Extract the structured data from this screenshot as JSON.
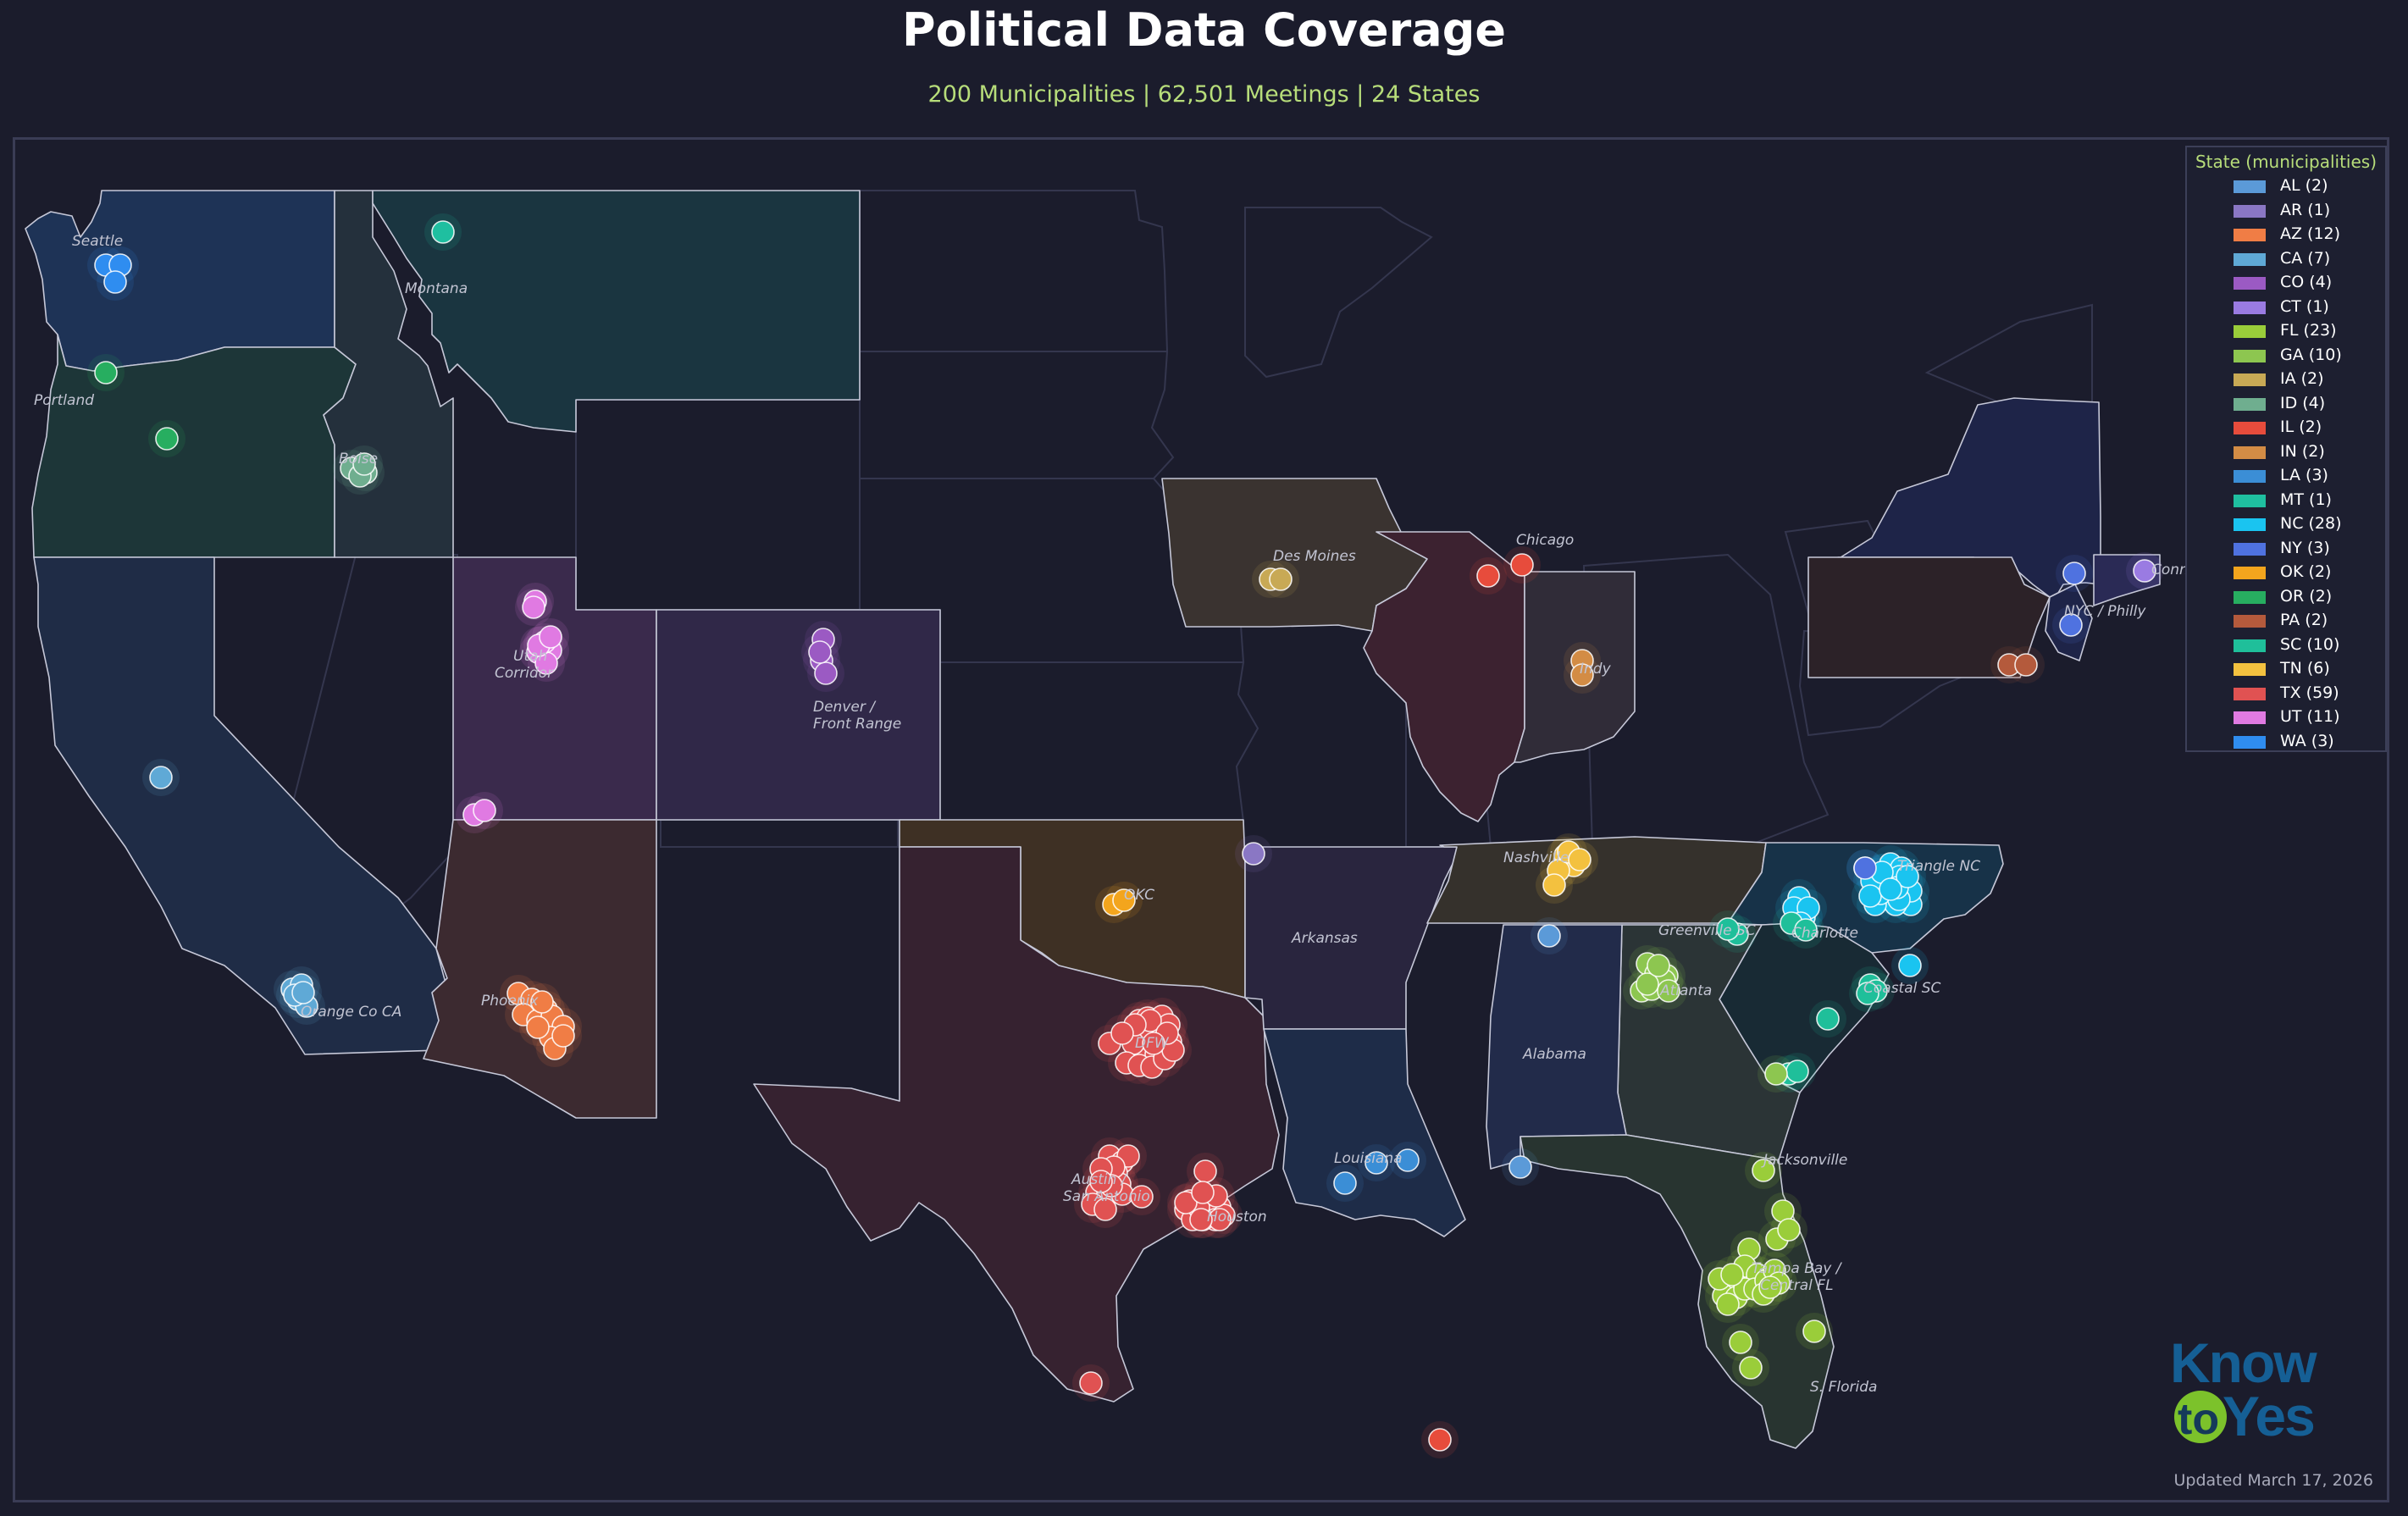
{
  "title": "Political Data Coverage",
  "subtitle": "200 Municipalities | 62,501 Meetings | 24 States",
  "legend": {
    "title": "State (municipalities)",
    "items": [
      {
        "label": "AL (2)",
        "color": "#5b9ad8"
      },
      {
        "label": "AR (1)",
        "color": "#8a77c4"
      },
      {
        "label": "AZ (12)",
        "color": "#f07d45"
      },
      {
        "label": "CA (7)",
        "color": "#5fa9d6"
      },
      {
        "label": "CO (4)",
        "color": "#9b5ac3"
      },
      {
        "label": "CT (1)",
        "color": "#9a7be2"
      },
      {
        "label": "FL (23)",
        "color": "#9acd3a"
      },
      {
        "label": "GA (10)",
        "color": "#8dc650"
      },
      {
        "label": "IA (2)",
        "color": "#c8a955"
      },
      {
        "label": "ID (4)",
        "color": "#6fae8f"
      },
      {
        "label": "IL (2)",
        "color": "#e74c3c"
      },
      {
        "label": "IN (2)",
        "color": "#d38c45"
      },
      {
        "label": "LA (3)",
        "color": "#3b8ed6"
      },
      {
        "label": "MT (1)",
        "color": "#1fbfa0"
      },
      {
        "label": "NC (28)",
        "color": "#1ac4f0"
      },
      {
        "label": "NY (3)",
        "color": "#4f72e0"
      },
      {
        "label": "OK (2)",
        "color": "#f3a51d"
      },
      {
        "label": "OR (2)",
        "color": "#27ae60"
      },
      {
        "label": "PA (2)",
        "color": "#b45a3c"
      },
      {
        "label": "SC (10)",
        "color": "#1fbf9a"
      },
      {
        "label": "TN (6)",
        "color": "#f3c13f"
      },
      {
        "label": "TX (59)",
        "color": "#e05252"
      },
      {
        "label": "UT (11)",
        "color": "#e07ae2"
      },
      {
        "label": "WA (3)",
        "color": "#2f8df0"
      }
    ]
  },
  "regions": [
    {
      "name": "Seattle",
      "code": "WA"
    },
    {
      "name": "Montana",
      "code": "MT"
    },
    {
      "name": "Portland",
      "code": "OR"
    },
    {
      "name": "Boise",
      "code": "ID"
    },
    {
      "name": "Utah Corridor",
      "code": "UT"
    },
    {
      "name": "Denver / Front Range",
      "code": "CO"
    },
    {
      "name": "Orange Co CA",
      "code": "CA"
    },
    {
      "name": "Phoenix",
      "code": "AZ"
    },
    {
      "name": "OKC",
      "code": "OK"
    },
    {
      "name": "Arkansas",
      "code": "AR"
    },
    {
      "name": "Des Moines",
      "code": "IA"
    },
    {
      "name": "Chicago",
      "code": "IL"
    },
    {
      "name": "Indy",
      "code": "IN"
    },
    {
      "name": "Nashville",
      "code": "TN"
    },
    {
      "name": "Alabama",
      "code": "AL"
    },
    {
      "name": "Triangle NC",
      "code": "NC"
    },
    {
      "name": "Charlotte",
      "code": "NC"
    },
    {
      "name": "Greenville SC",
      "code": "SC"
    },
    {
      "name": "Coastal SC",
      "code": "SC"
    },
    {
      "name": "Atlanta",
      "code": "GA"
    },
    {
      "name": "Jacksonville",
      "code": "FL"
    },
    {
      "name": "Tampa Bay / Central FL",
      "code": "FL"
    },
    {
      "name": "S. Florida",
      "code": "FL"
    },
    {
      "name": "Louisiana",
      "code": "LA"
    },
    {
      "name": "DFW",
      "code": "TX"
    },
    {
      "name": "Austin / San Antonio",
      "code": "TX"
    },
    {
      "name": "Houston",
      "code": "TX"
    },
    {
      "name": "NYC / Philly",
      "code": "NY"
    },
    {
      "name": "Connecticut",
      "code": "CT"
    }
  ],
  "logo": {
    "word1": "Know",
    "word2": "to",
    "word3": "Yes"
  },
  "updated": "Updated March 17, 2026"
}
